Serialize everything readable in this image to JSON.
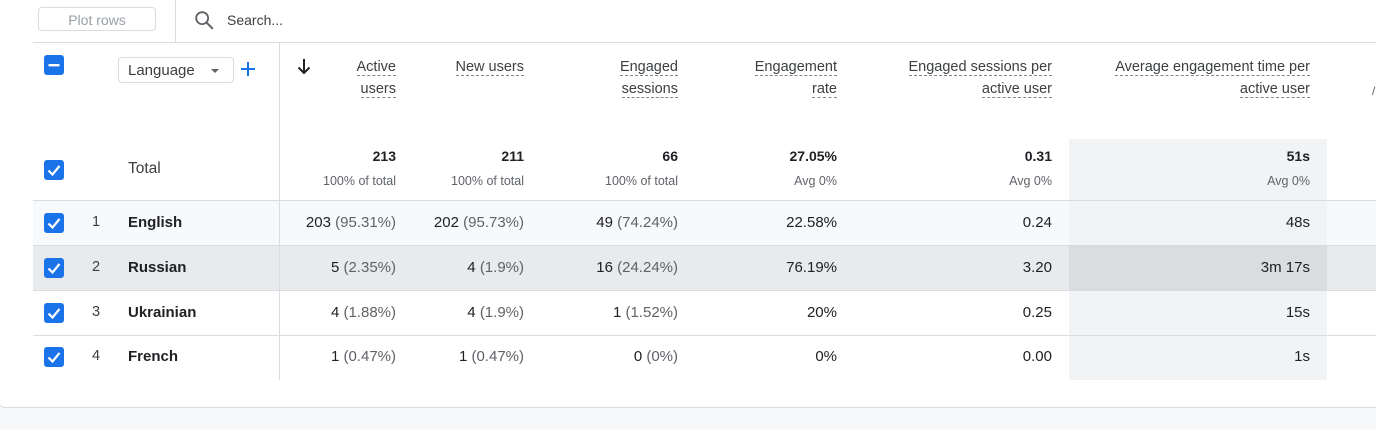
{
  "toolbar": {
    "plot_rows_label": "Plot rows",
    "search_placeholder": "Search..."
  },
  "dimension": {
    "selector_label": "Language"
  },
  "columns": [
    {
      "l1": "Active",
      "l2": "users"
    },
    {
      "l1": "New users",
      "l2": ""
    },
    {
      "l1": "Engaged",
      "l2": "sessions"
    },
    {
      "l1": "Engagement",
      "l2": "rate"
    },
    {
      "l1": "Engaged sessions per",
      "l2": "active user"
    },
    {
      "l1": "Average engagement time per",
      "l2": "active user"
    }
  ],
  "totals": {
    "label": "Total",
    "values": [
      "213",
      "211",
      "66",
      "27.05%",
      "0.31",
      "51s"
    ],
    "subs": [
      "100% of total",
      "100% of total",
      "100% of total",
      "Avg 0%",
      "Avg 0%",
      "Avg 0%"
    ]
  },
  "rows": [
    {
      "index": "1",
      "name": "English",
      "cells": [
        {
          "v": "203",
          "p": "(95.31%)"
        },
        {
          "v": "202",
          "p": "(95.73%)"
        },
        {
          "v": "49",
          "p": "(74.24%)"
        },
        {
          "v": "22.58%",
          "p": ""
        },
        {
          "v": "0.24",
          "p": ""
        },
        {
          "v": "48s",
          "p": ""
        }
      ]
    },
    {
      "index": "2",
      "name": "Russian",
      "cells": [
        {
          "v": "5",
          "p": "(2.35%)"
        },
        {
          "v": "4",
          "p": "(1.9%)"
        },
        {
          "v": "16",
          "p": "(24.24%)"
        },
        {
          "v": "76.19%",
          "p": ""
        },
        {
          "v": "3.20",
          "p": ""
        },
        {
          "v": "3m 17s",
          "p": ""
        }
      ]
    },
    {
      "index": "3",
      "name": "Ukrainian",
      "cells": [
        {
          "v": "4",
          "p": "(1.88%)"
        },
        {
          "v": "4",
          "p": "(1.9%)"
        },
        {
          "v": "1",
          "p": "(1.52%)"
        },
        {
          "v": "20%",
          "p": ""
        },
        {
          "v": "0.25",
          "p": ""
        },
        {
          "v": "15s",
          "p": ""
        }
      ]
    },
    {
      "index": "4",
      "name": "French",
      "cells": [
        {
          "v": "1",
          "p": "(0.47%)"
        },
        {
          "v": "1",
          "p": "(0.47%)"
        },
        {
          "v": "0",
          "p": "(0%)"
        },
        {
          "v": "0%",
          "p": ""
        },
        {
          "v": "0.00",
          "p": ""
        },
        {
          "v": "1s",
          "p": ""
        }
      ]
    }
  ],
  "colors": {
    "accent": "#1a73e8",
    "highlight_row": "#e8eaed",
    "highlight_cell": "#dadce0",
    "sort_column_shade": "#f1f3f4"
  }
}
